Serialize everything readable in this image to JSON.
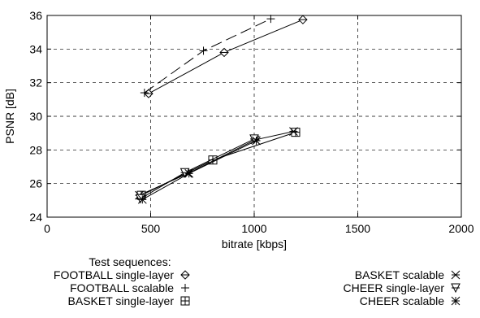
{
  "chart_data": {
    "type": "line",
    "title": "",
    "xlabel": "bitrate [kbps]",
    "ylabel": "PSNR [dB]",
    "xlim": [
      0,
      2000
    ],
    "ylim": [
      24,
      36
    ],
    "xticks": [
      0,
      500,
      1000,
      1500,
      2000
    ],
    "yticks": [
      24,
      26,
      28,
      30,
      32,
      34,
      36
    ],
    "grid": true,
    "legend": {
      "title": "Test sequences:",
      "placement": "bottom"
    },
    "series": [
      {
        "name": "FOOTBALL single-layer",
        "marker": "diamond",
        "dash": "solid",
        "x": [
          490,
          855,
          1235
        ],
        "y": [
          31.35,
          33.8,
          35.75
        ]
      },
      {
        "name": "FOOTBALL scalable",
        "marker": "plus",
        "dash": "longdash",
        "x": [
          470,
          755,
          1080
        ],
        "y": [
          31.4,
          33.9,
          35.8
        ]
      },
      {
        "name": "BASKET single-layer",
        "marker": "square",
        "dash": "solid",
        "x": [
          455,
          800,
          1200
        ],
        "y": [
          25.3,
          27.4,
          29.05
        ]
      },
      {
        "name": "BASKET scalable",
        "marker": "x",
        "dash": "solid",
        "x": [
          445,
          680,
          1005,
          1190
        ],
        "y": [
          25.3,
          26.6,
          28.6,
          29.1
        ]
      },
      {
        "name": "CHEER single-layer",
        "marker": "triangle-down",
        "dash": "solid",
        "x": [
          450,
          665,
          1000
        ],
        "y": [
          25.1,
          26.65,
          28.65
        ]
      },
      {
        "name": "CHEER scalable",
        "marker": "asterisk",
        "dash": "solid",
        "x": [
          460,
          685,
          1010
        ],
        "y": [
          25.05,
          26.6,
          28.55
        ]
      }
    ]
  }
}
